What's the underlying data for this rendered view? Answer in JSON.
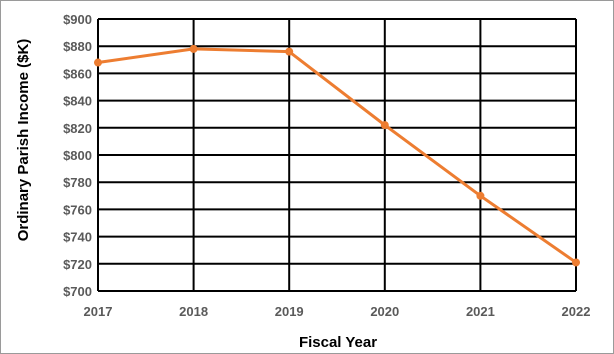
{
  "chart_data": {
    "type": "line",
    "title": "",
    "xlabel": "Fiscal Year",
    "ylabel": "Ordinary Parish Income ($K)",
    "categories": [
      "2017",
      "2018",
      "2019",
      "2020",
      "2021",
      "2022"
    ],
    "series": [
      {
        "values": [
          868,
          878,
          876,
          822,
          770,
          721
        ]
      }
    ],
    "y_ticks": [
      "$700",
      "$720",
      "$740",
      "$760",
      "$780",
      "$800",
      "$820",
      "$840",
      "$860",
      "$880",
      "$900"
    ],
    "ylim": [
      700,
      900
    ],
    "y_step": 20,
    "grid": true,
    "legend": "none",
    "colors": {
      "line": "#ED7D31",
      "grid": "#000000",
      "tick_text": "#5A5A5A"
    }
  }
}
